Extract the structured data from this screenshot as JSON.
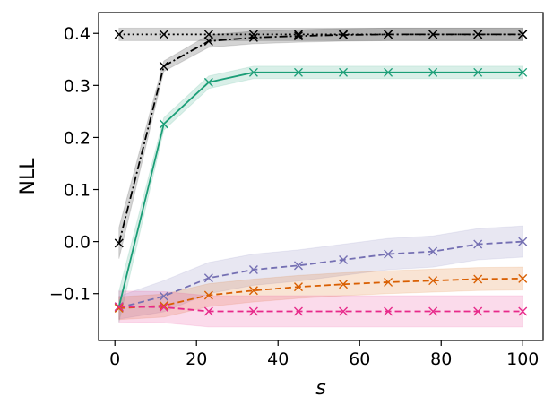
{
  "chart_data": {
    "type": "line",
    "title": "",
    "xlabel": "s",
    "ylabel": "NLL",
    "xlim": [
      -4,
      105
    ],
    "ylim": [
      -0.19,
      0.44
    ],
    "xticks": [
      0,
      20,
      40,
      60,
      80,
      100
    ],
    "xtick_labels": [
      "0",
      "20",
      "40",
      "60",
      "80",
      "100"
    ],
    "yticks": [
      -0.1,
      0.0,
      0.1,
      0.2,
      0.3,
      0.4
    ],
    "ytick_labels": [
      "−0.1",
      "0.0",
      "0.1",
      "0.2",
      "0.3",
      "0.4"
    ],
    "grid": false,
    "legend": "none",
    "x": [
      1,
      12,
      23,
      34,
      45,
      56,
      67,
      78,
      89,
      100
    ],
    "series": [
      {
        "name": "black-dotted",
        "color": "#000000",
        "linestyle": "dotted",
        "marker": "x",
        "values": [
          0.398,
          0.398,
          0.398,
          0.398,
          0.398,
          0.398,
          0.398,
          0.398,
          0.398,
          0.398
        ],
        "band": [
          0.012,
          0.012,
          0.012,
          0.012,
          0.012,
          0.012,
          0.012,
          0.012,
          0.012,
          0.012
        ]
      },
      {
        "name": "black-dashdot",
        "color": "#000000",
        "linestyle": "dashdot",
        "marker": "x",
        "values": [
          -0.003,
          0.337,
          0.385,
          0.392,
          0.395,
          0.397,
          0.398,
          0.398,
          0.398,
          0.398
        ],
        "band": [
          0.03,
          0.01,
          0.012,
          0.012,
          0.012,
          0.012,
          0.012,
          0.012,
          0.012,
          0.012
        ]
      },
      {
        "name": "green-solid",
        "color": "#1b9e77",
        "linestyle": "solid",
        "marker": "x",
        "values": [
          -0.125,
          0.226,
          0.306,
          0.325,
          0.325,
          0.325,
          0.325,
          0.325,
          0.325,
          0.325
        ],
        "band": [
          0.03,
          0.012,
          0.012,
          0.012,
          0.012,
          0.012,
          0.012,
          0.012,
          0.012,
          0.012
        ]
      },
      {
        "name": "purple-dashed",
        "color": "#7570b3",
        "linestyle": "dashed",
        "marker": "x",
        "values": [
          -0.127,
          -0.105,
          -0.07,
          -0.054,
          -0.046,
          -0.035,
          -0.024,
          -0.019,
          -0.005,
          0.0
        ],
        "band": [
          0.022,
          0.03,
          0.03,
          0.03,
          0.03,
          0.03,
          0.03,
          0.03,
          0.03,
          0.03
        ]
      },
      {
        "name": "orange-dashed",
        "color": "#d95f02",
        "linestyle": "dashed",
        "marker": "x",
        "values": [
          -0.128,
          -0.123,
          -0.103,
          -0.094,
          -0.087,
          -0.082,
          -0.078,
          -0.075,
          -0.072,
          -0.071
        ],
        "band": [
          0.022,
          0.022,
          0.022,
          0.022,
          0.022,
          0.022,
          0.022,
          0.022,
          0.022,
          0.022
        ]
      },
      {
        "name": "pink-dashed",
        "color": "#e7298a",
        "linestyle": "dashed",
        "marker": "x",
        "values": [
          -0.125,
          -0.126,
          -0.134,
          -0.134,
          -0.134,
          -0.134,
          -0.134,
          -0.134,
          -0.134,
          -0.134
        ],
        "band": [
          0.03,
          0.03,
          0.03,
          0.03,
          0.03,
          0.03,
          0.03,
          0.03,
          0.03,
          0.03
        ]
      }
    ]
  }
}
